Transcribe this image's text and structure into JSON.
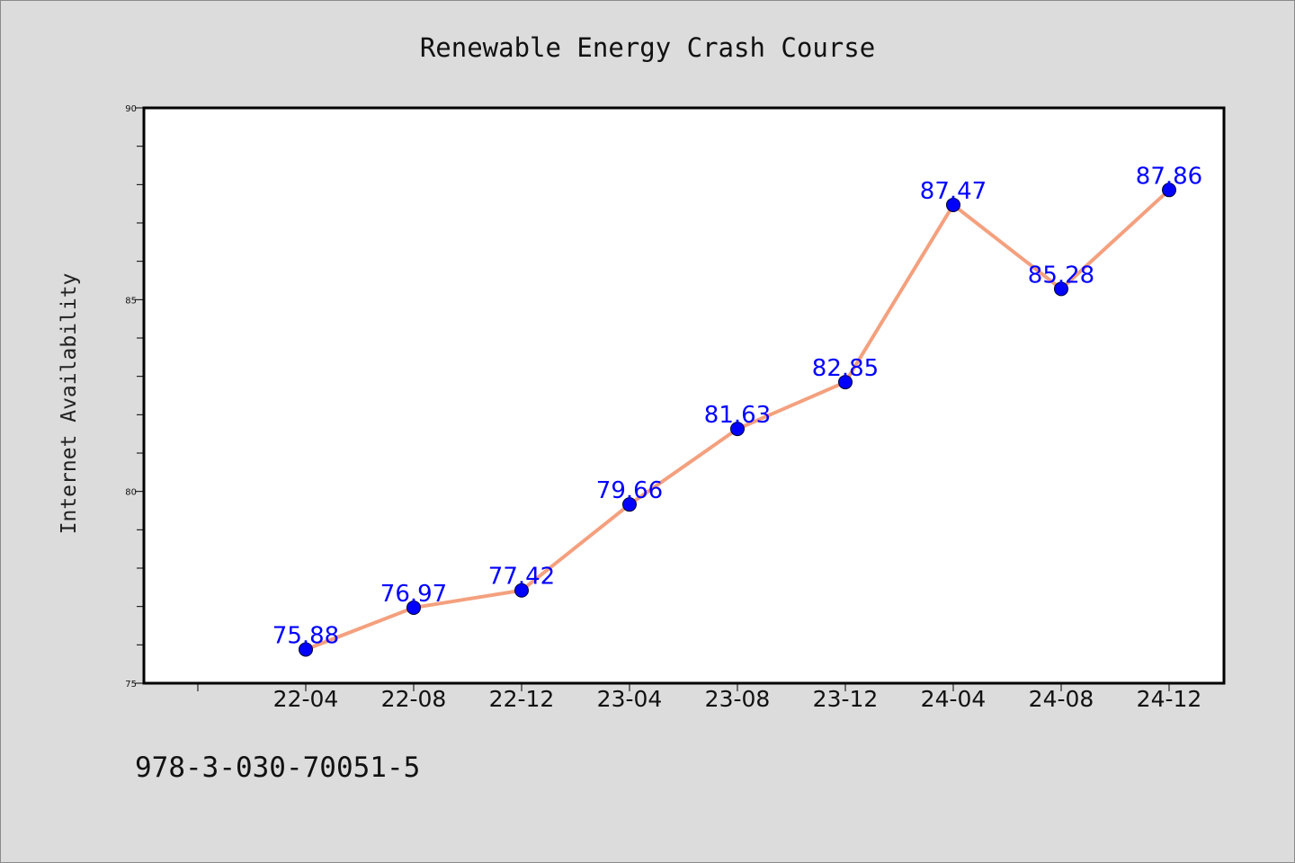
{
  "chart_data": {
    "type": "line",
    "title": "Renewable Energy Crash Course",
    "xlabel": "",
    "ylabel": "Internet Availability",
    "categories": [
      "22-04",
      "22-08",
      "22-12",
      "23-04",
      "23-08",
      "23-12",
      "24-04",
      "24-08",
      "24-12"
    ],
    "values": [
      75.88,
      76.97,
      77.42,
      79.66,
      81.63,
      82.85,
      87.47,
      85.28,
      87.86
    ],
    "data_labels": [
      "75.88",
      "76.97",
      "77.42",
      "79.66",
      "81.63",
      "82.85",
      "87.47",
      "85.28",
      "87.86"
    ],
    "ylim": [
      75,
      90
    ],
    "yticks": [
      75,
      80,
      85,
      90
    ],
    "ytick_labels": [
      "75",
      "80",
      "85",
      "90"
    ],
    "grid": false,
    "legend": "none",
    "line_color": "#f4a07e",
    "marker_color": "#0000ff",
    "label_color": "#0000ff"
  },
  "footer": {
    "isbn": "978-3-030-70051-5"
  }
}
